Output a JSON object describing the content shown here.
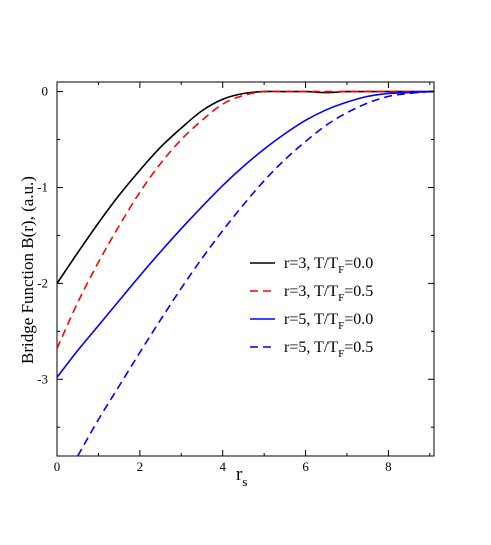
{
  "chart_data": {
    "type": "line",
    "xlabel": "r",
    "xlabel_sub": "s",
    "ylabel": "Bridge Function  B(r), (a.u.)",
    "xlim": [
      0,
      9.1
    ],
    "ylim": [
      -3.8,
      0.1
    ],
    "xticks": [
      0,
      2,
      4,
      6,
      8
    ],
    "yticks": [
      0,
      -1,
      -2,
      -3
    ],
    "grid": false,
    "legend_position": "right-center",
    "series": [
      {
        "name": "r=3, T/T_F=0.0",
        "label_main": "r=3, T/T",
        "label_sub": "F",
        "label_tail": "=0.0",
        "color": "#000000",
        "dash": "solid",
        "x": [
          0,
          0.5,
          1,
          1.5,
          2,
          2.5,
          3,
          3.5,
          4,
          4.5,
          5,
          5.5,
          6,
          6.5,
          7,
          7.5,
          8,
          8.5,
          9,
          9.1
        ],
        "y": [
          -2.0,
          -1.68,
          -1.37,
          -1.08,
          -0.82,
          -0.58,
          -0.38,
          -0.2,
          -0.08,
          -0.02,
          0.0,
          0.0,
          0.0,
          -0.01,
          0.0,
          0.0,
          0.0,
          0.0,
          0.0,
          0.0
        ]
      },
      {
        "name": "r=3, T/T_F=0.5",
        "label_main": "r=3, T/T",
        "label_sub": "F",
        "label_tail": "=0.5",
        "color": "#ff0000",
        "dash": "dashed",
        "x": [
          0,
          0.5,
          1,
          1.5,
          2,
          2.5,
          3,
          3.5,
          4,
          4.5,
          5,
          5.5,
          6,
          6.5,
          7,
          7.5,
          8,
          8.5,
          9,
          9.1
        ],
        "y": [
          -2.68,
          -2.2,
          -1.78,
          -1.4,
          -1.05,
          -0.75,
          -0.5,
          -0.3,
          -0.13,
          -0.04,
          0.0,
          0.0,
          0.0,
          0.0,
          0.0,
          0.0,
          0.0,
          0.0,
          0.0,
          0.0
        ]
      },
      {
        "name": "r=5, T/T_F=0.0",
        "label_main": "r=5, T/T",
        "label_sub": "F",
        "label_tail": "=0.0",
        "color": "#0000ff",
        "dash": "solid",
        "x": [
          0,
          0.5,
          1,
          1.5,
          2,
          2.5,
          3,
          3.5,
          4,
          4.5,
          5,
          5.5,
          6,
          6.5,
          7,
          7.5,
          8,
          8.5,
          9,
          9.1
        ],
        "y": [
          -2.98,
          -2.7,
          -2.44,
          -2.18,
          -1.92,
          -1.67,
          -1.43,
          -1.2,
          -0.98,
          -0.78,
          -0.6,
          -0.44,
          -0.3,
          -0.19,
          -0.11,
          -0.05,
          -0.02,
          -0.01,
          0.0,
          0.0
        ]
      },
      {
        "name": "r=5, T/T_F=0.5",
        "label_main": "r=5, T/T",
        "label_sub": "F",
        "label_tail": "=0.5",
        "color": "#0000ff",
        "dash": "dashed",
        "x": [
          0.5,
          1,
          1.5,
          2,
          2.5,
          3,
          3.5,
          4,
          4.5,
          5,
          5.5,
          6,
          6.5,
          7,
          7.5,
          8,
          8.5,
          9,
          9.1
        ],
        "y": [
          -3.8,
          -3.42,
          -3.07,
          -2.72,
          -2.38,
          -2.05,
          -1.74,
          -1.45,
          -1.18,
          -0.93,
          -0.71,
          -0.52,
          -0.35,
          -0.22,
          -0.12,
          -0.05,
          -0.02,
          0.0,
          0.0
        ]
      }
    ]
  }
}
